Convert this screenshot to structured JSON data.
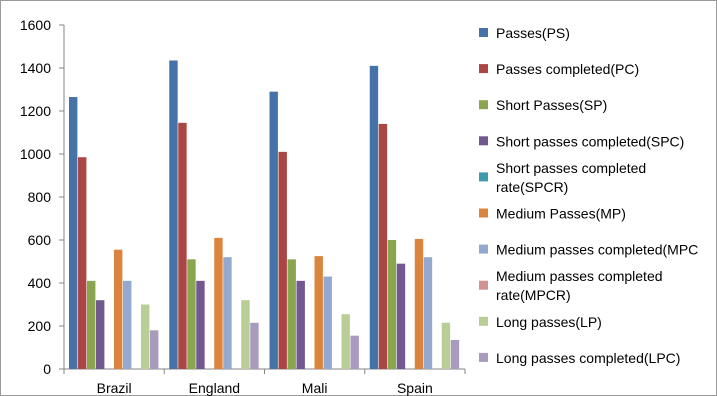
{
  "chart_data": {
    "type": "bar",
    "title": "",
    "xlabel": "",
    "ylabel": "",
    "ylim": [
      0,
      1600
    ],
    "yticks": [
      0,
      200,
      400,
      600,
      800,
      1000,
      1200,
      1400,
      1600
    ],
    "grid": false,
    "legend_position": "right",
    "categories": [
      "Brazil",
      "England",
      "Mali",
      "Spain"
    ],
    "series": [
      {
        "name": "Passes(PS)",
        "color": "#4572A7",
        "values": [
          1265,
          1435,
          1290,
          1410
        ]
      },
      {
        "name": "Passes completed(PC)",
        "color": "#AA4643",
        "values": [
          985,
          1145,
          1010,
          1140
        ]
      },
      {
        "name": "Short Passes(SP)",
        "color": "#89A54E",
        "values": [
          410,
          510,
          510,
          600
        ]
      },
      {
        "name": "Short passes completed(SPC)",
        "color": "#71588F",
        "values": [
          320,
          410,
          410,
          490
        ]
      },
      {
        "name": "Short passes completed rate(SPCR)",
        "label_lines": [
          "Short passes completed",
          "rate(SPCR)"
        ],
        "color": "#4198AF",
        "values": [
          0,
          0,
          0,
          0
        ]
      },
      {
        "name": "Medium Passes(MP)",
        "color": "#DB843D",
        "values": [
          555,
          610,
          525,
          605
        ]
      },
      {
        "name": "Medium passes completed(MPC",
        "color": "#93A9CF",
        "values": [
          410,
          520,
          430,
          520
        ]
      },
      {
        "name": "Medium passes completed rate(MPCR)",
        "label_lines": [
          "Medium passes completed",
          "rate(MPCR)"
        ],
        "color": "#D19392",
        "values": [
          0,
          0,
          0,
          0
        ]
      },
      {
        "name": "Long passes(LP)",
        "color": "#B9CD96",
        "values": [
          300,
          320,
          255,
          215
        ]
      },
      {
        "name": "Long passes completed(LPC)",
        "color": "#A99BBD",
        "values": [
          180,
          215,
          155,
          135
        ]
      }
    ]
  }
}
